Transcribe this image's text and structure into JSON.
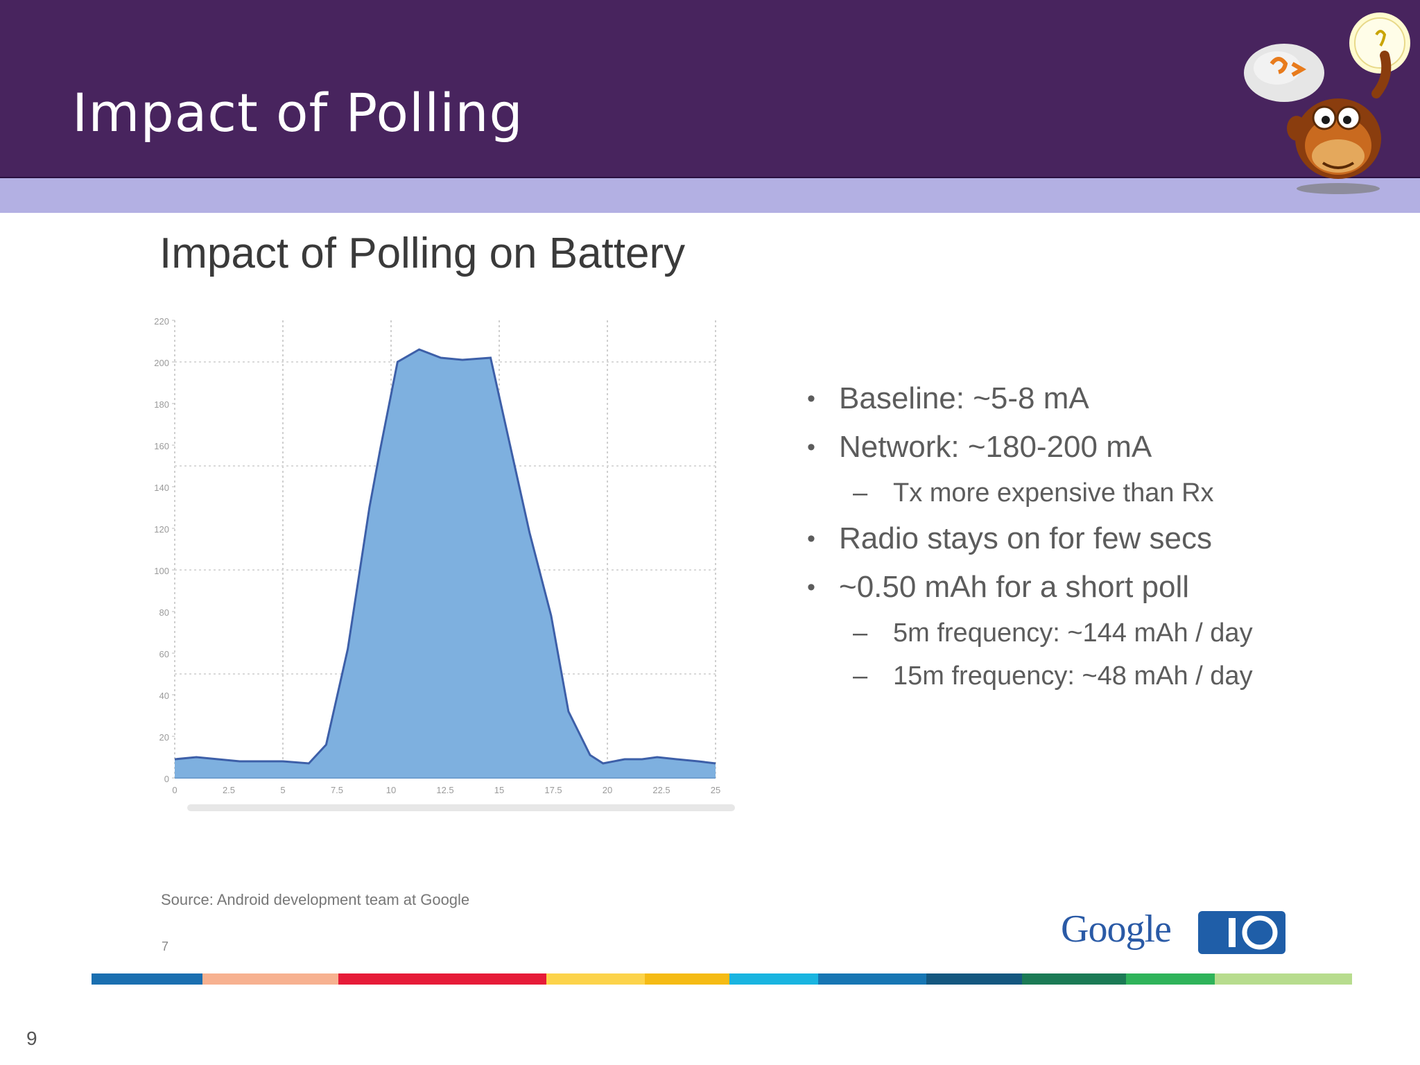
{
  "header": {
    "title": "Impact of Polling"
  },
  "slide": {
    "title": "Impact of Polling on Battery",
    "source": "Source: Android development team at Google",
    "original_page_number": "7",
    "page_number": "9"
  },
  "bullets": [
    {
      "level": 1,
      "text": "Baseline: ~5-8 mA"
    },
    {
      "level": 1,
      "text": "Network: ~180-200 mA"
    },
    {
      "level": 2,
      "text": "Tx more expensive than Rx"
    },
    {
      "level": 1,
      "text": "Radio stays on for few secs"
    },
    {
      "level": 1,
      "text": "~0.50 mAh for a short poll"
    },
    {
      "level": 2,
      "text": "5m frequency: ~144 mAh / day"
    },
    {
      "level": 2,
      "text": "15m frequency: ~48 mAh / day"
    }
  ],
  "branding": {
    "google": "Google",
    "io": "I/O",
    "mascot_icon": "monkey-lightbulb-mascot-icon"
  },
  "colors": {
    "header": "#48245e",
    "band": "#b3b0e3",
    "area_fill": "#7eb0df",
    "area_stroke": "#3d5fa8",
    "strip": [
      "#1a6fb0",
      "#f7b190",
      "#e61b38",
      "#e61b38",
      "#fcd34a",
      "#f5bb14",
      "#19b4e0",
      "#1776b3",
      "#14577f",
      "#1b7a55",
      "#2fb35a",
      "#b7dc8e"
    ]
  },
  "chart_data": {
    "type": "area",
    "title": "",
    "xlabel": "",
    "ylabel": "",
    "xlim": [
      0,
      25
    ],
    "ylim": [
      0,
      220
    ],
    "x_ticks": [
      "0",
      "2.5",
      "5",
      "7.5",
      "10",
      "12.5",
      "15",
      "17.5",
      "20",
      "22.5",
      "25"
    ],
    "y_ticks": [
      "0",
      "20",
      "40",
      "60",
      "80",
      "100",
      "120",
      "140",
      "160",
      "180",
      "200",
      "220"
    ],
    "grid": true,
    "series": [
      {
        "x": [
          0,
          1,
          2,
          3,
          4,
          5,
          6.2,
          7,
          8,
          9,
          9.5,
          10.3,
          11.3,
          12.3,
          13.3,
          14.6,
          15.5,
          16.4,
          17.4,
          18.2,
          19.2,
          19.8,
          20.8,
          21.6,
          22.3,
          23.2,
          24.2,
          25
        ],
        "y": [
          9,
          10,
          9,
          8,
          8,
          8,
          7,
          16,
          62,
          130,
          158,
          200,
          206,
          202,
          201,
          202,
          160,
          118,
          78,
          32,
          11,
          7,
          9,
          9,
          10,
          9,
          8,
          7
        ]
      }
    ]
  }
}
